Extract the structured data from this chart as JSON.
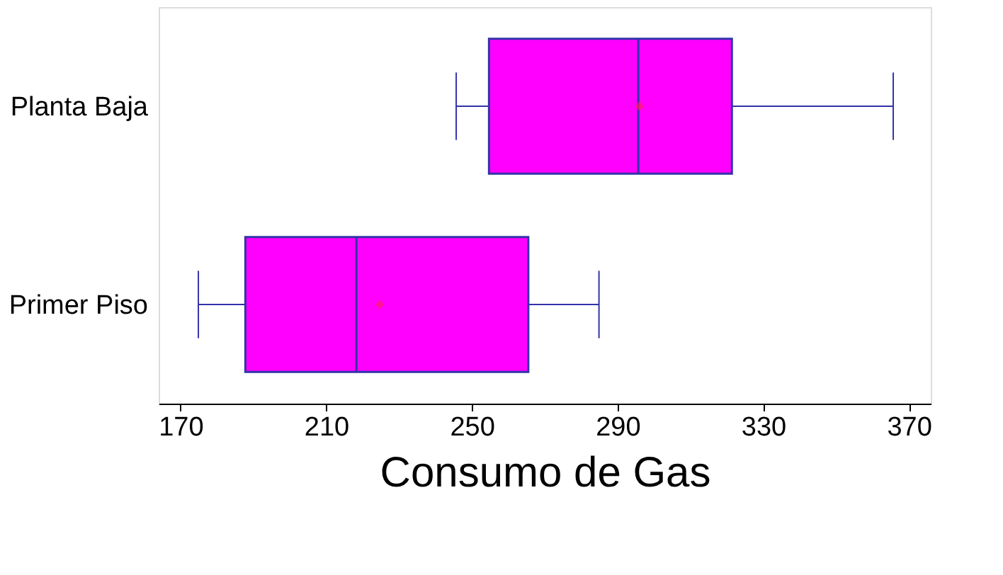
{
  "chart_data": {
    "type": "box",
    "xlabel": "Consumo de Gas",
    "categories": [
      "Planta Baja",
      "Primer Piso"
    ],
    "orientation": "horizontal",
    "xlim": [
      164,
      376
    ],
    "xticks": [
      170,
      210,
      250,
      290,
      330,
      370
    ],
    "grid": false,
    "series": [
      {
        "color": "#ff00ff",
        "boxes": [
          {
            "low": 245.7,
            "q1": 254.7,
            "median": 295.7,
            "q3": 321.4,
            "high": 365.7,
            "mean": 296
          },
          {
            "low": 174.9,
            "q1": 187.8,
            "median": 218.3,
            "q3": 265.5,
            "high": 284.9,
            "mean": 224.8
          }
        ]
      }
    ]
  }
}
